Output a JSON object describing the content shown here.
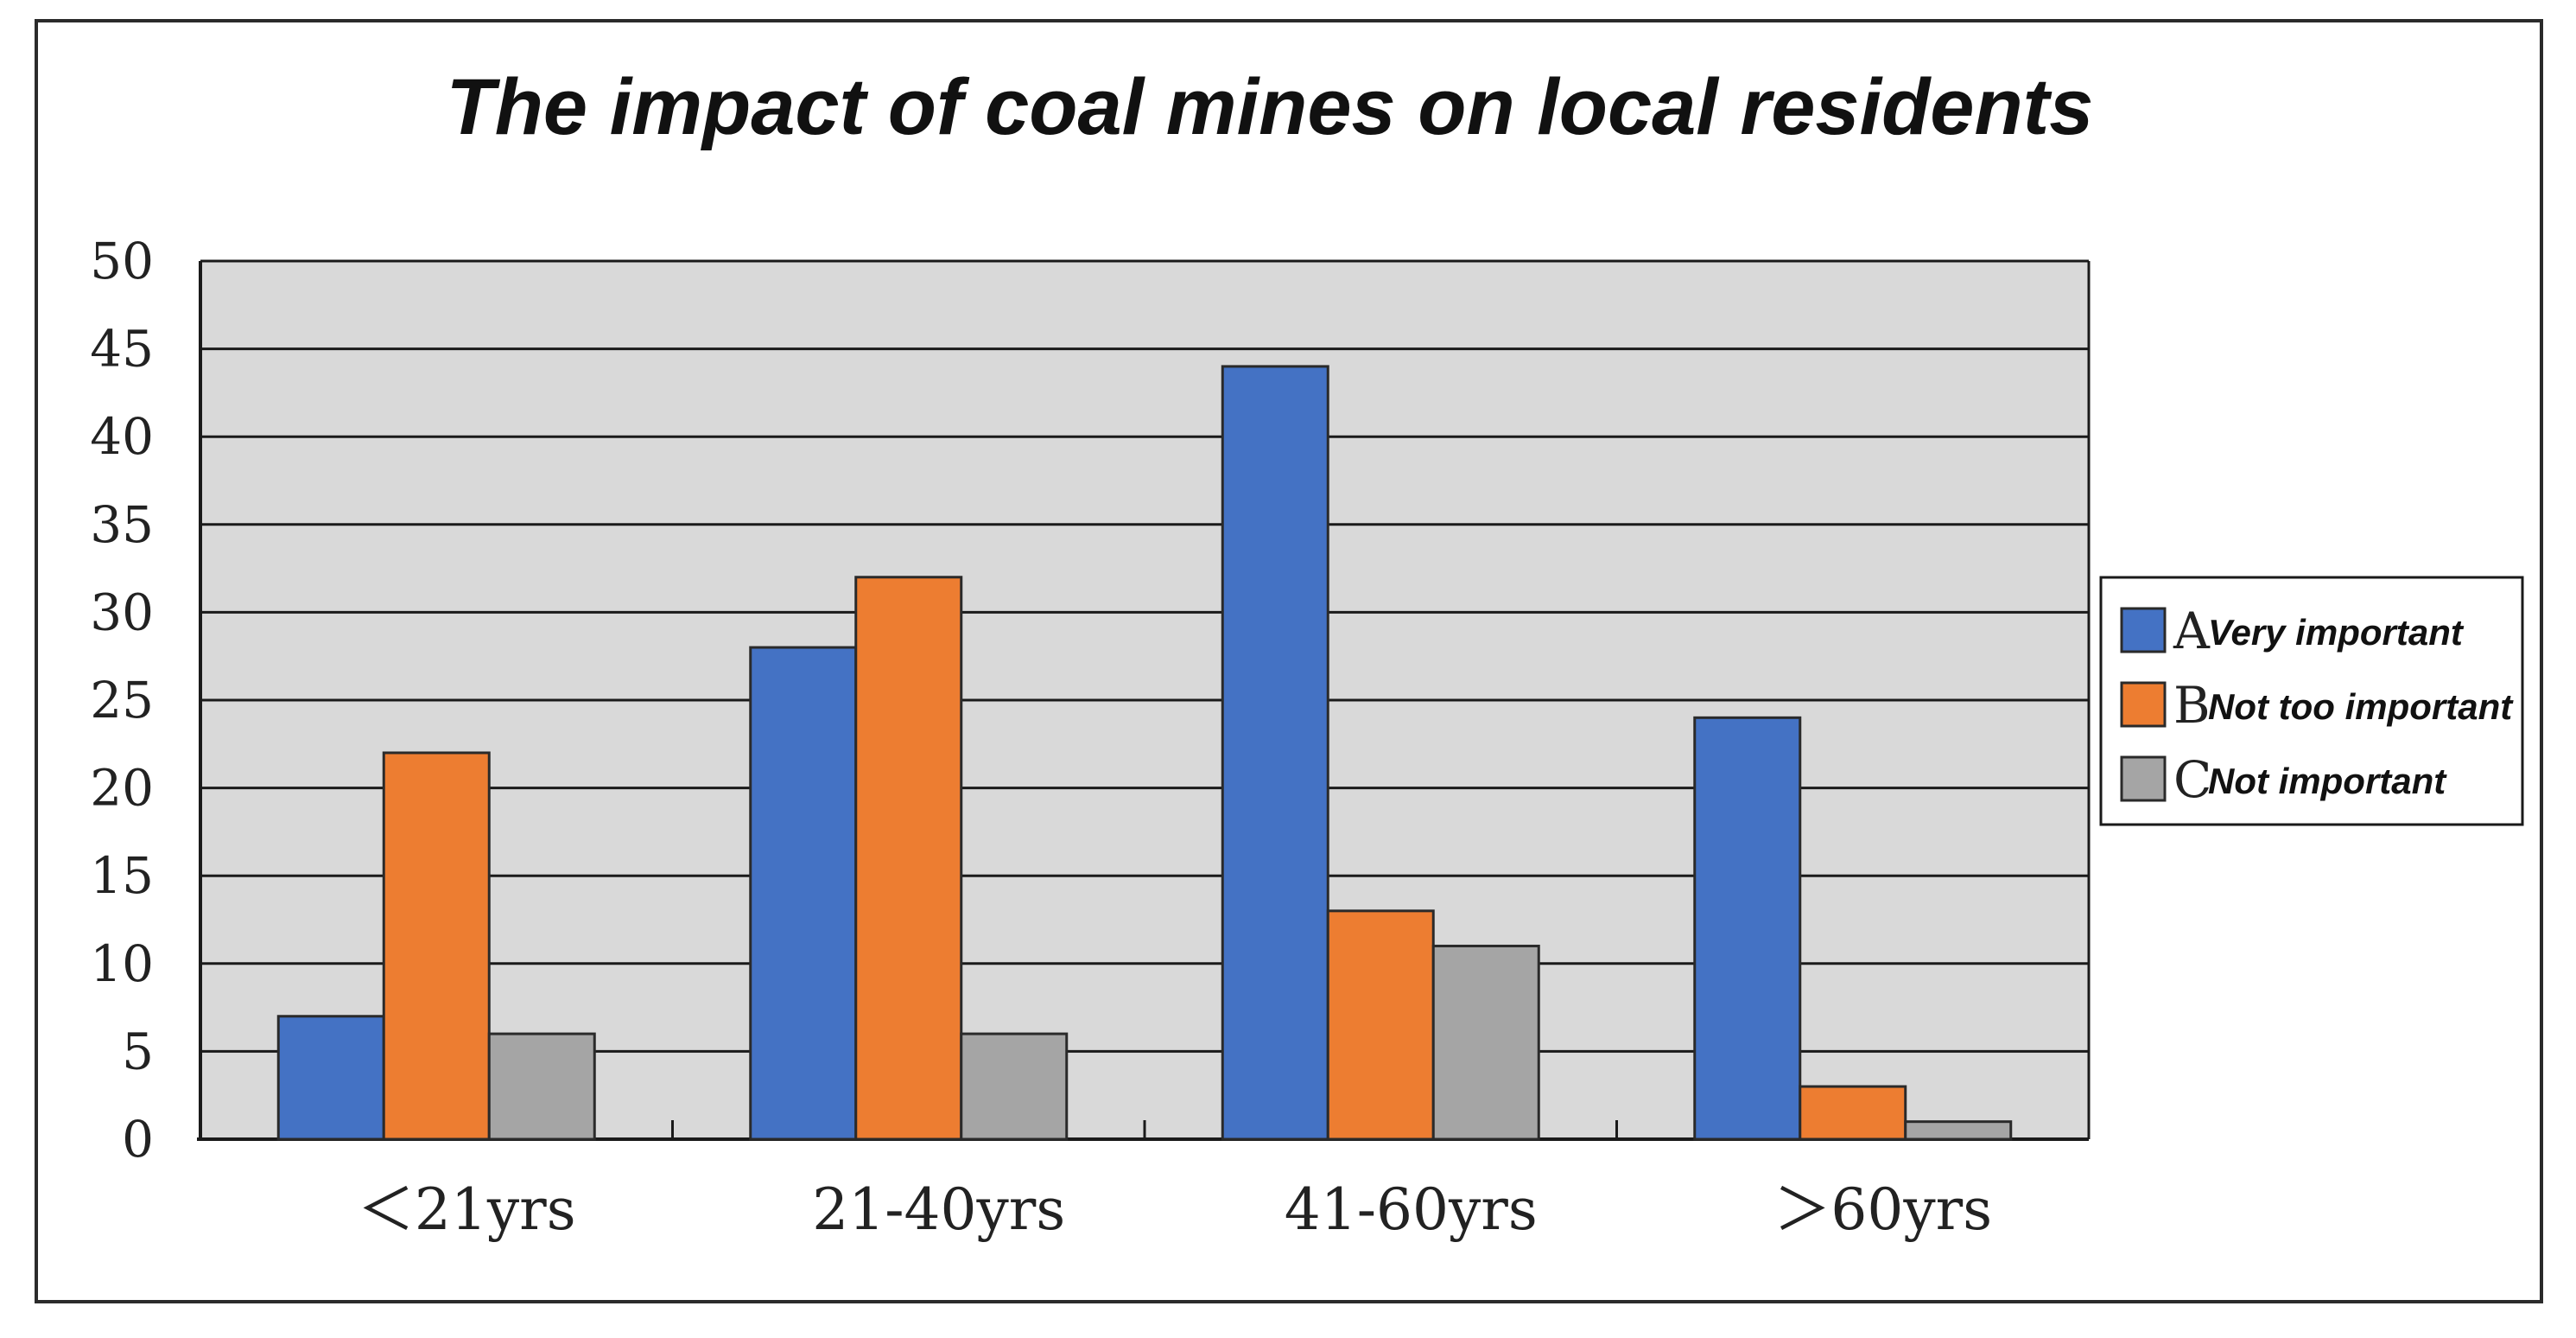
{
  "chart_data": {
    "type": "bar",
    "title": "The impact of coal mines on local residents",
    "xlabel": "",
    "ylabel": "",
    "ylim": [
      0,
      50
    ],
    "yticks": [
      0,
      5,
      10,
      15,
      20,
      25,
      30,
      35,
      40,
      45,
      50
    ],
    "grid": true,
    "legend_position": "right",
    "categories": [
      "＜21yrs",
      "21-40yrs",
      "41-60yrs",
      "＞60yrs"
    ],
    "series": [
      {
        "letter": "A",
        "name": "Very important",
        "color": "#4472c4",
        "values": [
          7,
          28,
          44,
          24
        ]
      },
      {
        "letter": "B",
        "name": "Not too important",
        "color": "#ed7d31",
        "values": [
          22,
          32,
          13,
          3
        ]
      },
      {
        "letter": "C",
        "name": "Not important",
        "color": "#a5a5a5",
        "values": [
          6,
          6,
          11,
          1
        ]
      }
    ],
    "colors": {
      "plot_background": "#d9d9d9",
      "gridline": "#1a1a1a",
      "bar_outline": "#2a2a2a"
    }
  }
}
